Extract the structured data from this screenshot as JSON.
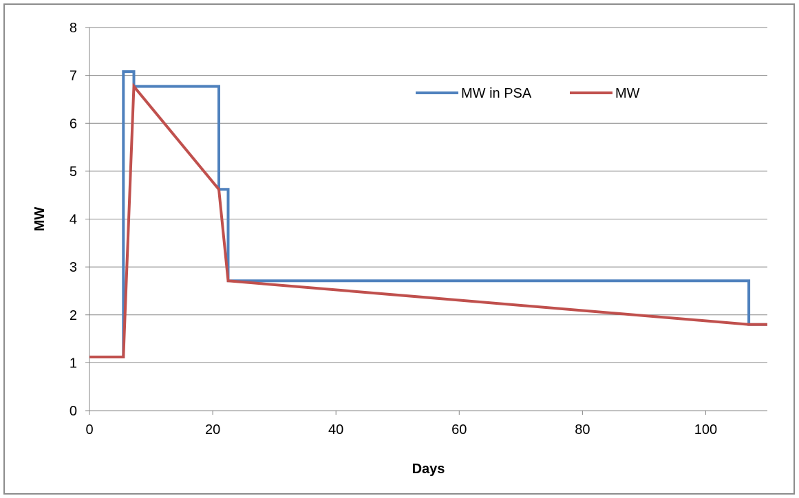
{
  "chart_data": {
    "type": "line",
    "title": "",
    "xlabel": "Days",
    "ylabel": "MW",
    "xlim": [
      0,
      110
    ],
    "ylim": [
      0,
      8
    ],
    "xticks": [
      0,
      20,
      40,
      60,
      80,
      100
    ],
    "yticks": [
      0,
      1,
      2,
      3,
      4,
      5,
      6,
      7,
      8
    ],
    "grid": "horizontal",
    "legend": "top-right",
    "series": [
      {
        "name": "MW in PSA",
        "color": "#4f81bd",
        "x": [
          0,
          5.5,
          5.5,
          7.2,
          7.2,
          21.0,
          21.0,
          22.5,
          22.5,
          107.0,
          107.0,
          110
        ],
        "y": [
          1.12,
          1.12,
          7.08,
          7.08,
          6.77,
          6.77,
          4.62,
          4.62,
          2.71,
          2.71,
          1.8,
          1.8
        ]
      },
      {
        "name": "MW",
        "color": "#c0504d",
        "x": [
          0,
          5.5,
          7.2,
          21.0,
          22.5,
          107.0,
          110
        ],
        "y": [
          1.12,
          1.12,
          6.77,
          4.62,
          2.71,
          1.8,
          1.8
        ]
      }
    ]
  }
}
